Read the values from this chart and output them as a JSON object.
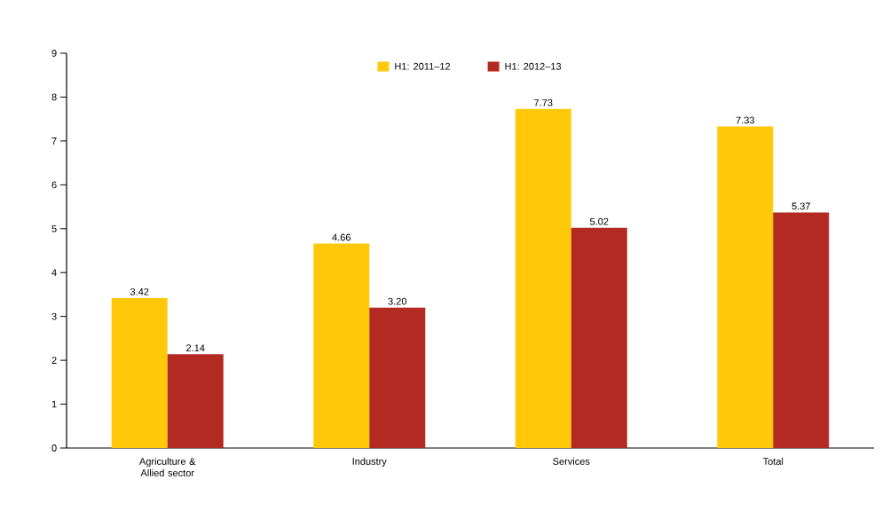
{
  "chart_data": {
    "type": "bar",
    "categories": [
      "Agriculture & Allied sector",
      "Industry",
      "Services",
      "Total"
    ],
    "series": [
      {
        "name": "H1: 2011–12",
        "color": "#ffc90a",
        "values": [
          3.42,
          4.66,
          7.73,
          7.33
        ],
        "value_labels": [
          "3.42",
          "4.66",
          "7.73",
          "7.33"
        ]
      },
      {
        "name": "H1: 2012–13",
        "color": "#b22a22",
        "values": [
          2.14,
          3.2,
          5.02,
          5.37
        ],
        "value_labels": [
          "2.14",
          "3.20",
          "5.02",
          "5.37"
        ]
      }
    ],
    "ylim": [
      0,
      9
    ],
    "yticks": [
      0,
      1,
      2,
      3,
      4,
      5,
      6,
      7,
      8,
      9
    ],
    "grid": false,
    "legend": "top"
  }
}
